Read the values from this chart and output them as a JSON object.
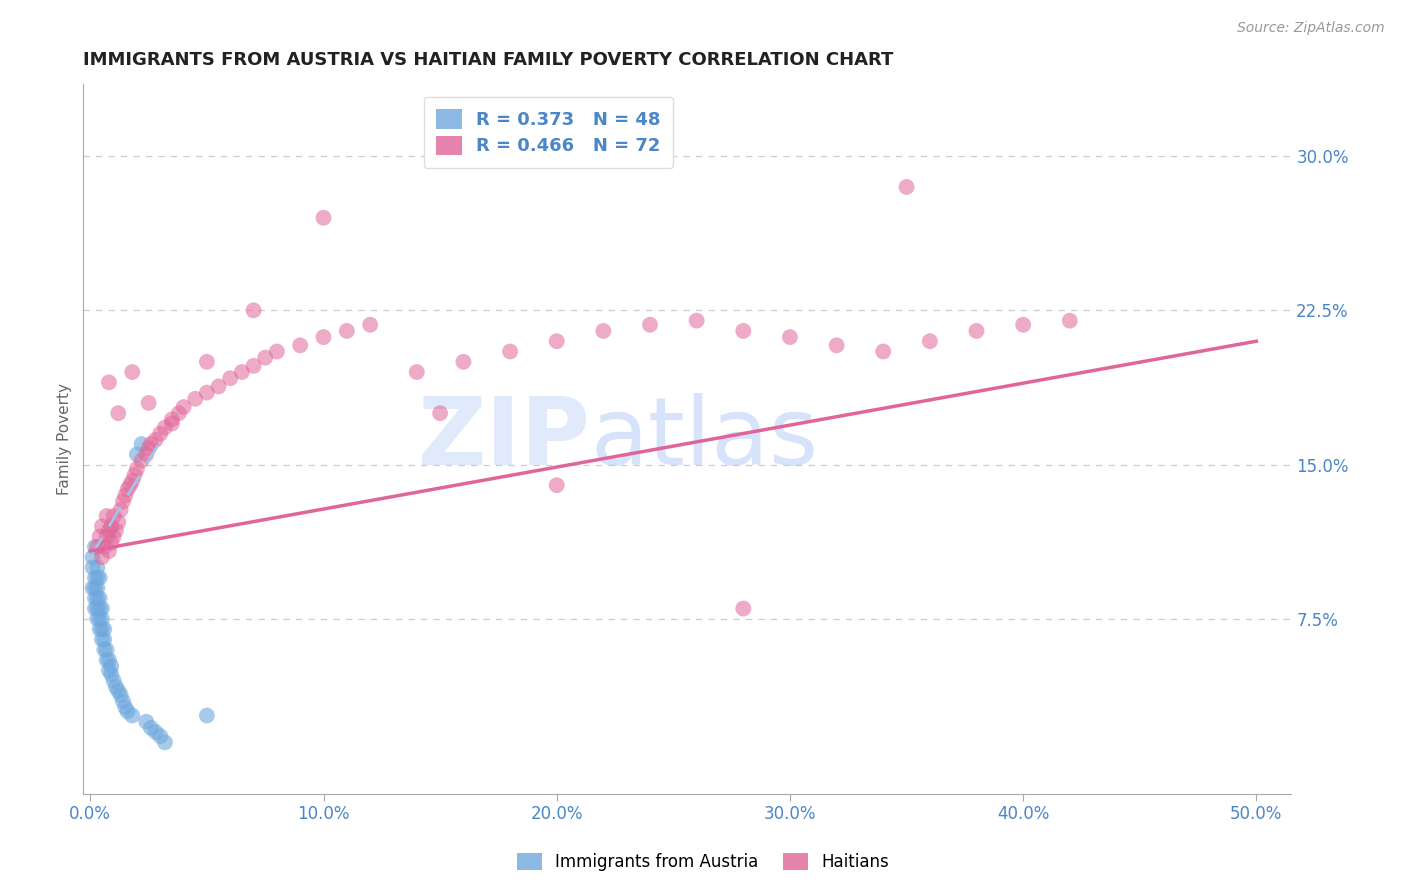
{
  "title": "IMMIGRANTS FROM AUSTRIA VS HAITIAN FAMILY POVERTY CORRELATION CHART",
  "source": "Source: ZipAtlas.com",
  "xlabel_ticks": [
    "0.0%",
    "10.0%",
    "20.0%",
    "30.0%",
    "40.0%",
    "50.0%"
  ],
  "xlabel_vals": [
    0.0,
    0.1,
    0.2,
    0.3,
    0.4,
    0.5
  ],
  "ylabel_ticks": [
    "7.5%",
    "15.0%",
    "22.5%",
    "30.0%"
  ],
  "ylabel_vals": [
    0.075,
    0.15,
    0.225,
    0.3
  ],
  "xlim": [
    -0.003,
    0.515
  ],
  "ylim": [
    -0.01,
    0.335
  ],
  "ylabel": "Family Poverty",
  "legend_austria": "R = 0.373   N = 48",
  "legend_haitians": "R = 0.466   N = 72",
  "legend_label1": "Immigrants from Austria",
  "legend_label2": "Haitians",
  "austria_color": "#6fa8dc",
  "haiti_color": "#e06699",
  "austria_trendline_color": "#9fc5e8",
  "haiti_trendline_color": "#e06699",
  "watermark_zip": "ZIP",
  "watermark_atlas": "atlas",
  "background_color": "#ffffff",
  "grid_color": "#cccccc",
  "tick_color": "#4a86c8",
  "austria_scatter_x": [
    0.001,
    0.001,
    0.001,
    0.002,
    0.002,
    0.002,
    0.002,
    0.002,
    0.003,
    0.003,
    0.003,
    0.003,
    0.003,
    0.003,
    0.004,
    0.004,
    0.004,
    0.004,
    0.004,
    0.005,
    0.005,
    0.005,
    0.005,
    0.006,
    0.006,
    0.006,
    0.007,
    0.007,
    0.008,
    0.008,
    0.009,
    0.009,
    0.01,
    0.011,
    0.012,
    0.013,
    0.014,
    0.015,
    0.016,
    0.018,
    0.02,
    0.022,
    0.024,
    0.026,
    0.028,
    0.03,
    0.032,
    0.05
  ],
  "austria_scatter_y": [
    0.09,
    0.1,
    0.105,
    0.08,
    0.085,
    0.09,
    0.095,
    0.11,
    0.075,
    0.08,
    0.085,
    0.09,
    0.095,
    0.1,
    0.07,
    0.075,
    0.08,
    0.085,
    0.095,
    0.065,
    0.07,
    0.075,
    0.08,
    0.06,
    0.065,
    0.07,
    0.055,
    0.06,
    0.05,
    0.055,
    0.048,
    0.052,
    0.045,
    0.042,
    0.04,
    0.038,
    0.035,
    0.032,
    0.03,
    0.028,
    0.155,
    0.16,
    0.025,
    0.022,
    0.02,
    0.018,
    0.015,
    0.028
  ],
  "haiti_scatter_x": [
    0.003,
    0.004,
    0.005,
    0.005,
    0.006,
    0.007,
    0.007,
    0.008,
    0.008,
    0.009,
    0.009,
    0.01,
    0.01,
    0.011,
    0.012,
    0.013,
    0.014,
    0.015,
    0.016,
    0.017,
    0.018,
    0.019,
    0.02,
    0.022,
    0.024,
    0.025,
    0.026,
    0.028,
    0.03,
    0.032,
    0.035,
    0.038,
    0.04,
    0.045,
    0.05,
    0.055,
    0.06,
    0.065,
    0.07,
    0.075,
    0.08,
    0.09,
    0.1,
    0.11,
    0.12,
    0.14,
    0.16,
    0.18,
    0.2,
    0.22,
    0.24,
    0.26,
    0.28,
    0.3,
    0.32,
    0.34,
    0.36,
    0.38,
    0.4,
    0.42,
    0.008,
    0.012,
    0.018,
    0.025,
    0.035,
    0.05,
    0.07,
    0.1,
    0.15,
    0.2,
    0.28,
    0.35
  ],
  "haiti_scatter_y": [
    0.11,
    0.115,
    0.105,
    0.12,
    0.11,
    0.115,
    0.125,
    0.108,
    0.118,
    0.112,
    0.12,
    0.115,
    0.125,
    0.118,
    0.122,
    0.128,
    0.132,
    0.135,
    0.138,
    0.14,
    0.142,
    0.145,
    0.148,
    0.152,
    0.155,
    0.158,
    0.16,
    0.162,
    0.165,
    0.168,
    0.172,
    0.175,
    0.178,
    0.182,
    0.185,
    0.188,
    0.192,
    0.195,
    0.198,
    0.202,
    0.205,
    0.208,
    0.212,
    0.215,
    0.218,
    0.195,
    0.2,
    0.205,
    0.21,
    0.215,
    0.218,
    0.22,
    0.215,
    0.212,
    0.208,
    0.205,
    0.21,
    0.215,
    0.218,
    0.22,
    0.19,
    0.175,
    0.195,
    0.18,
    0.17,
    0.2,
    0.225,
    0.27,
    0.175,
    0.14,
    0.08,
    0.285
  ],
  "austria_trend_x": [
    0.0,
    0.032
  ],
  "austria_trend_y": [
    0.105,
    0.165
  ],
  "haiti_trend_x": [
    0.0,
    0.5
  ],
  "haiti_trend_y": [
    0.108,
    0.21
  ]
}
